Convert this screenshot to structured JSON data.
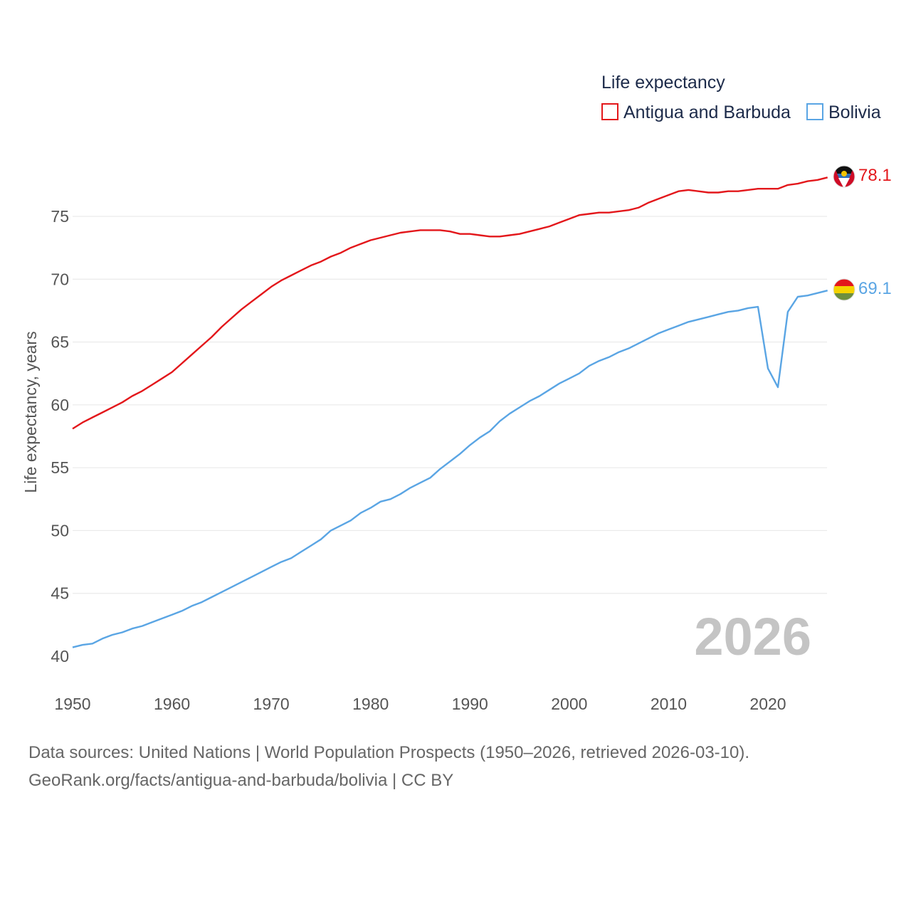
{
  "colors": {
    "antigua": "#e3171b",
    "bolivia": "#5aa5e4",
    "grid": "#e6e6e6",
    "text": "#555555",
    "legend_text": "#1d2b4a",
    "watermark": "#c4c4c4"
  },
  "chart_data": {
    "type": "line",
    "title": "",
    "legend_title": "Life expectancy",
    "legend_position": "top-right",
    "ylabel": "Life expectancy, years",
    "xlabel": "",
    "xlim": [
      1950,
      2026
    ],
    "ylim": [
      40,
      80
    ],
    "x_ticks": [
      1950,
      1960,
      1970,
      1980,
      1990,
      2000,
      2010,
      2020
    ],
    "y_ticks": [
      40,
      45,
      50,
      55,
      60,
      65,
      70,
      75
    ],
    "grid": true,
    "watermark_year": "2026",
    "x": [
      1950,
      1951,
      1952,
      1953,
      1954,
      1955,
      1956,
      1957,
      1958,
      1959,
      1960,
      1961,
      1962,
      1963,
      1964,
      1965,
      1966,
      1967,
      1968,
      1969,
      1970,
      1971,
      1972,
      1973,
      1974,
      1975,
      1976,
      1977,
      1978,
      1979,
      1980,
      1981,
      1982,
      1983,
      1984,
      1985,
      1986,
      1987,
      1988,
      1989,
      1990,
      1991,
      1992,
      1993,
      1994,
      1995,
      1996,
      1997,
      1998,
      1999,
      2000,
      2001,
      2002,
      2003,
      2004,
      2005,
      2006,
      2007,
      2008,
      2009,
      2010,
      2011,
      2012,
      2013,
      2014,
      2015,
      2016,
      2017,
      2018,
      2019,
      2020,
      2021,
      2022,
      2023,
      2024,
      2025,
      2026
    ],
    "series": [
      {
        "name": "Antigua and Barbuda",
        "color_key": "antigua",
        "end_label": "78.1",
        "values": [
          58.1,
          58.6,
          59.0,
          59.4,
          59.8,
          60.2,
          60.7,
          61.1,
          61.6,
          62.1,
          62.6,
          63.3,
          64.0,
          64.7,
          65.4,
          66.2,
          66.9,
          67.6,
          68.2,
          68.8,
          69.4,
          69.9,
          70.3,
          70.7,
          71.1,
          71.4,
          71.8,
          72.1,
          72.5,
          72.8,
          73.1,
          73.3,
          73.5,
          73.7,
          73.8,
          73.9,
          73.9,
          73.9,
          73.8,
          73.6,
          73.6,
          73.5,
          73.4,
          73.4,
          73.5,
          73.6,
          73.8,
          74.0,
          74.2,
          74.5,
          74.8,
          75.1,
          75.2,
          75.3,
          75.3,
          75.4,
          75.5,
          75.7,
          76.1,
          76.4,
          76.7,
          77.0,
          77.1,
          77.0,
          76.9,
          76.9,
          77.0,
          77.0,
          77.1,
          77.2,
          77.2,
          77.2,
          77.5,
          77.6,
          77.8,
          77.9,
          78.1
        ]
      },
      {
        "name": "Bolivia",
        "color_key": "bolivia",
        "end_label": "69.1",
        "values": [
          40.7,
          40.9,
          41.0,
          41.4,
          41.7,
          41.9,
          42.2,
          42.4,
          42.7,
          43.0,
          43.3,
          43.6,
          44.0,
          44.3,
          44.7,
          45.1,
          45.5,
          45.9,
          46.3,
          46.7,
          47.1,
          47.5,
          47.8,
          48.3,
          48.8,
          49.3,
          50.0,
          50.4,
          50.8,
          51.4,
          51.8,
          52.3,
          52.5,
          52.9,
          53.4,
          53.8,
          54.2,
          54.9,
          55.5,
          56.1,
          56.8,
          57.4,
          57.9,
          58.7,
          59.3,
          59.8,
          60.3,
          60.7,
          61.2,
          61.7,
          62.1,
          62.5,
          63.1,
          63.5,
          63.8,
          64.2,
          64.5,
          64.9,
          65.3,
          65.7,
          66.0,
          66.3,
          66.6,
          66.8,
          67.0,
          67.2,
          67.4,
          67.5,
          67.7,
          67.8,
          62.9,
          61.4,
          67.4,
          68.6,
          68.7,
          68.9,
          69.1
        ]
      }
    ]
  },
  "source": {
    "line1": "Data sources: United Nations | World Population Prospects (1950–2026, retrieved 2026-03-10).",
    "line2": "GeoRank.org/facts/antigua-and-barbuda/bolivia | CC BY"
  }
}
